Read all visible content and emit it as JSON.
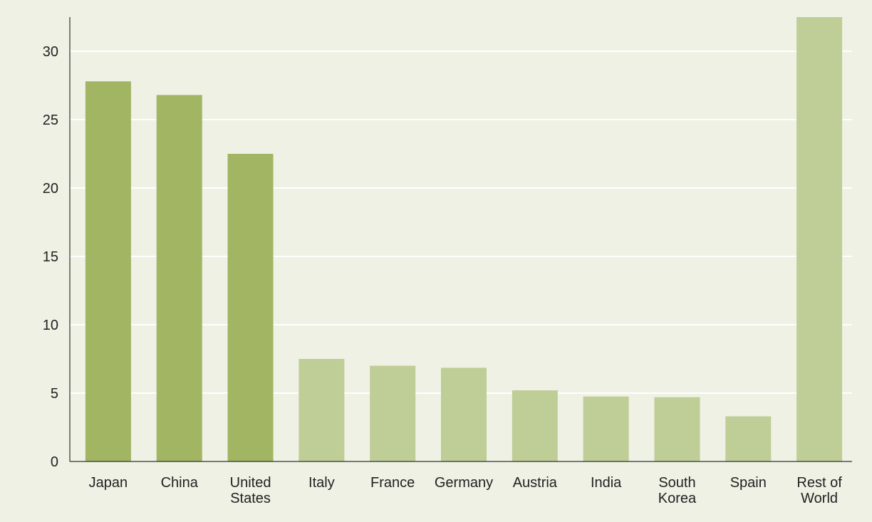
{
  "chart_data": {
    "type": "bar",
    "title": "",
    "xlabel": "",
    "ylabel": "",
    "ylim": [
      0,
      32.5
    ],
    "yticks": [
      0,
      5,
      10,
      15,
      20,
      25,
      30
    ],
    "grid": true,
    "categories": [
      [
        "Japan"
      ],
      [
        "China"
      ],
      [
        "United",
        "States"
      ],
      [
        "Italy"
      ],
      [
        "France"
      ],
      [
        "Germany"
      ],
      [
        "Austria"
      ],
      [
        "India"
      ],
      [
        "South",
        "Korea"
      ],
      [
        "Spain"
      ],
      [
        "Rest of",
        "World"
      ]
    ],
    "values": [
      27.8,
      26.8,
      22.5,
      7.5,
      7.0,
      6.85,
      5.2,
      4.75,
      4.7,
      3.3,
      32.5
    ],
    "colors": {
      "dark_bar": "#a1b563",
      "light_bar": "#bfcd96",
      "background": "#eef1e4",
      "grid": "#ffffff",
      "axis": "#333333"
    },
    "bar_color_keys": [
      "dark_bar",
      "dark_bar",
      "dark_bar",
      "light_bar",
      "light_bar",
      "light_bar",
      "light_bar",
      "light_bar",
      "light_bar",
      "light_bar",
      "light_bar"
    ]
  }
}
